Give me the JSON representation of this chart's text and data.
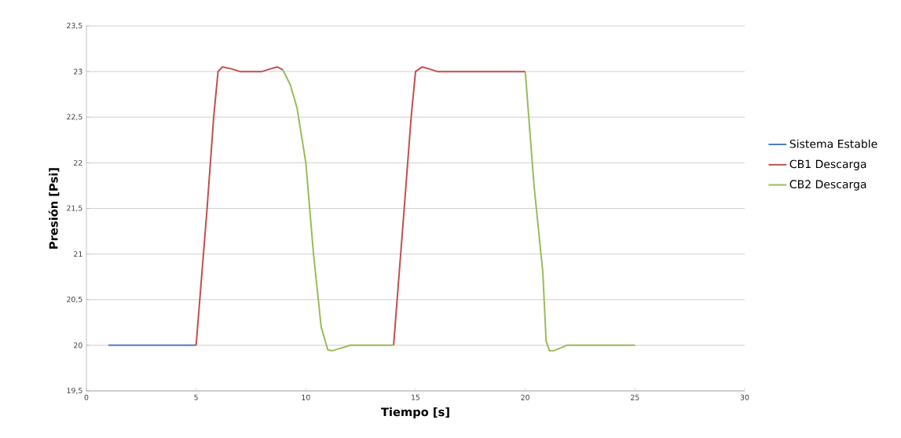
{
  "chart_data": {
    "type": "line",
    "xlabel": "Tiempo [s]",
    "ylabel": "Presión [Psi]",
    "xlim": [
      0,
      30
    ],
    "xticks": [
      0,
      5,
      10,
      15,
      20,
      25,
      30
    ],
    "ylim": [
      19.5,
      23.5
    ],
    "yticks": [
      {
        "value": 19.5,
        "label": "19,5"
      },
      20,
      {
        "value": 20.5,
        "label": "20,5"
      },
      21,
      {
        "value": 21.5,
        "label": "21,5"
      },
      22,
      {
        "value": 22.5,
        "label": "22,5"
      },
      23,
      {
        "value": 23.5,
        "label": "23,5"
      }
    ],
    "grid": "y",
    "legend": "right",
    "line_style": "solid",
    "series": [
      {
        "name": "Sistema Estable",
        "color": "#4f81bd",
        "x": [
          1,
          5
        ],
        "values": [
          20,
          20
        ]
      },
      {
        "name": "CB1 Descarga",
        "color": "#c0504d",
        "x": [
          5,
          5.5,
          5.8,
          6.0,
          6.2,
          6.6,
          7.0,
          8.0,
          8.4,
          8.7,
          8.95,
          11,
          14,
          14.5,
          14.8,
          15.0,
          15.3,
          15.6,
          16.0,
          20.0
        ],
        "values": [
          20,
          21.5,
          22.5,
          23.0,
          23.05,
          23.03,
          23.0,
          23.0,
          23.03,
          23.05,
          23.02,
          null,
          20,
          21.55,
          22.5,
          23.0,
          23.05,
          23.03,
          23.0,
          23.0
        ]
      },
      {
        "name": "CB2 Descarga",
        "color": "#9bbb59",
        "x": [
          8.95,
          9.3,
          9.6,
          10.0,
          10.35,
          10.7,
          11.0,
          11.2,
          11.9,
          12,
          14,
          17,
          20,
          20.4,
          20.8,
          20.95,
          21.1,
          21.3,
          21.9,
          25
        ],
        "values": [
          23.02,
          22.85,
          22.6,
          22.0,
          21.0,
          20.2,
          19.95,
          19.94,
          19.99,
          20,
          20,
          null,
          23.0,
          21.75,
          20.8,
          20.05,
          19.94,
          19.94,
          20.0,
          20.0
        ]
      }
    ]
  }
}
